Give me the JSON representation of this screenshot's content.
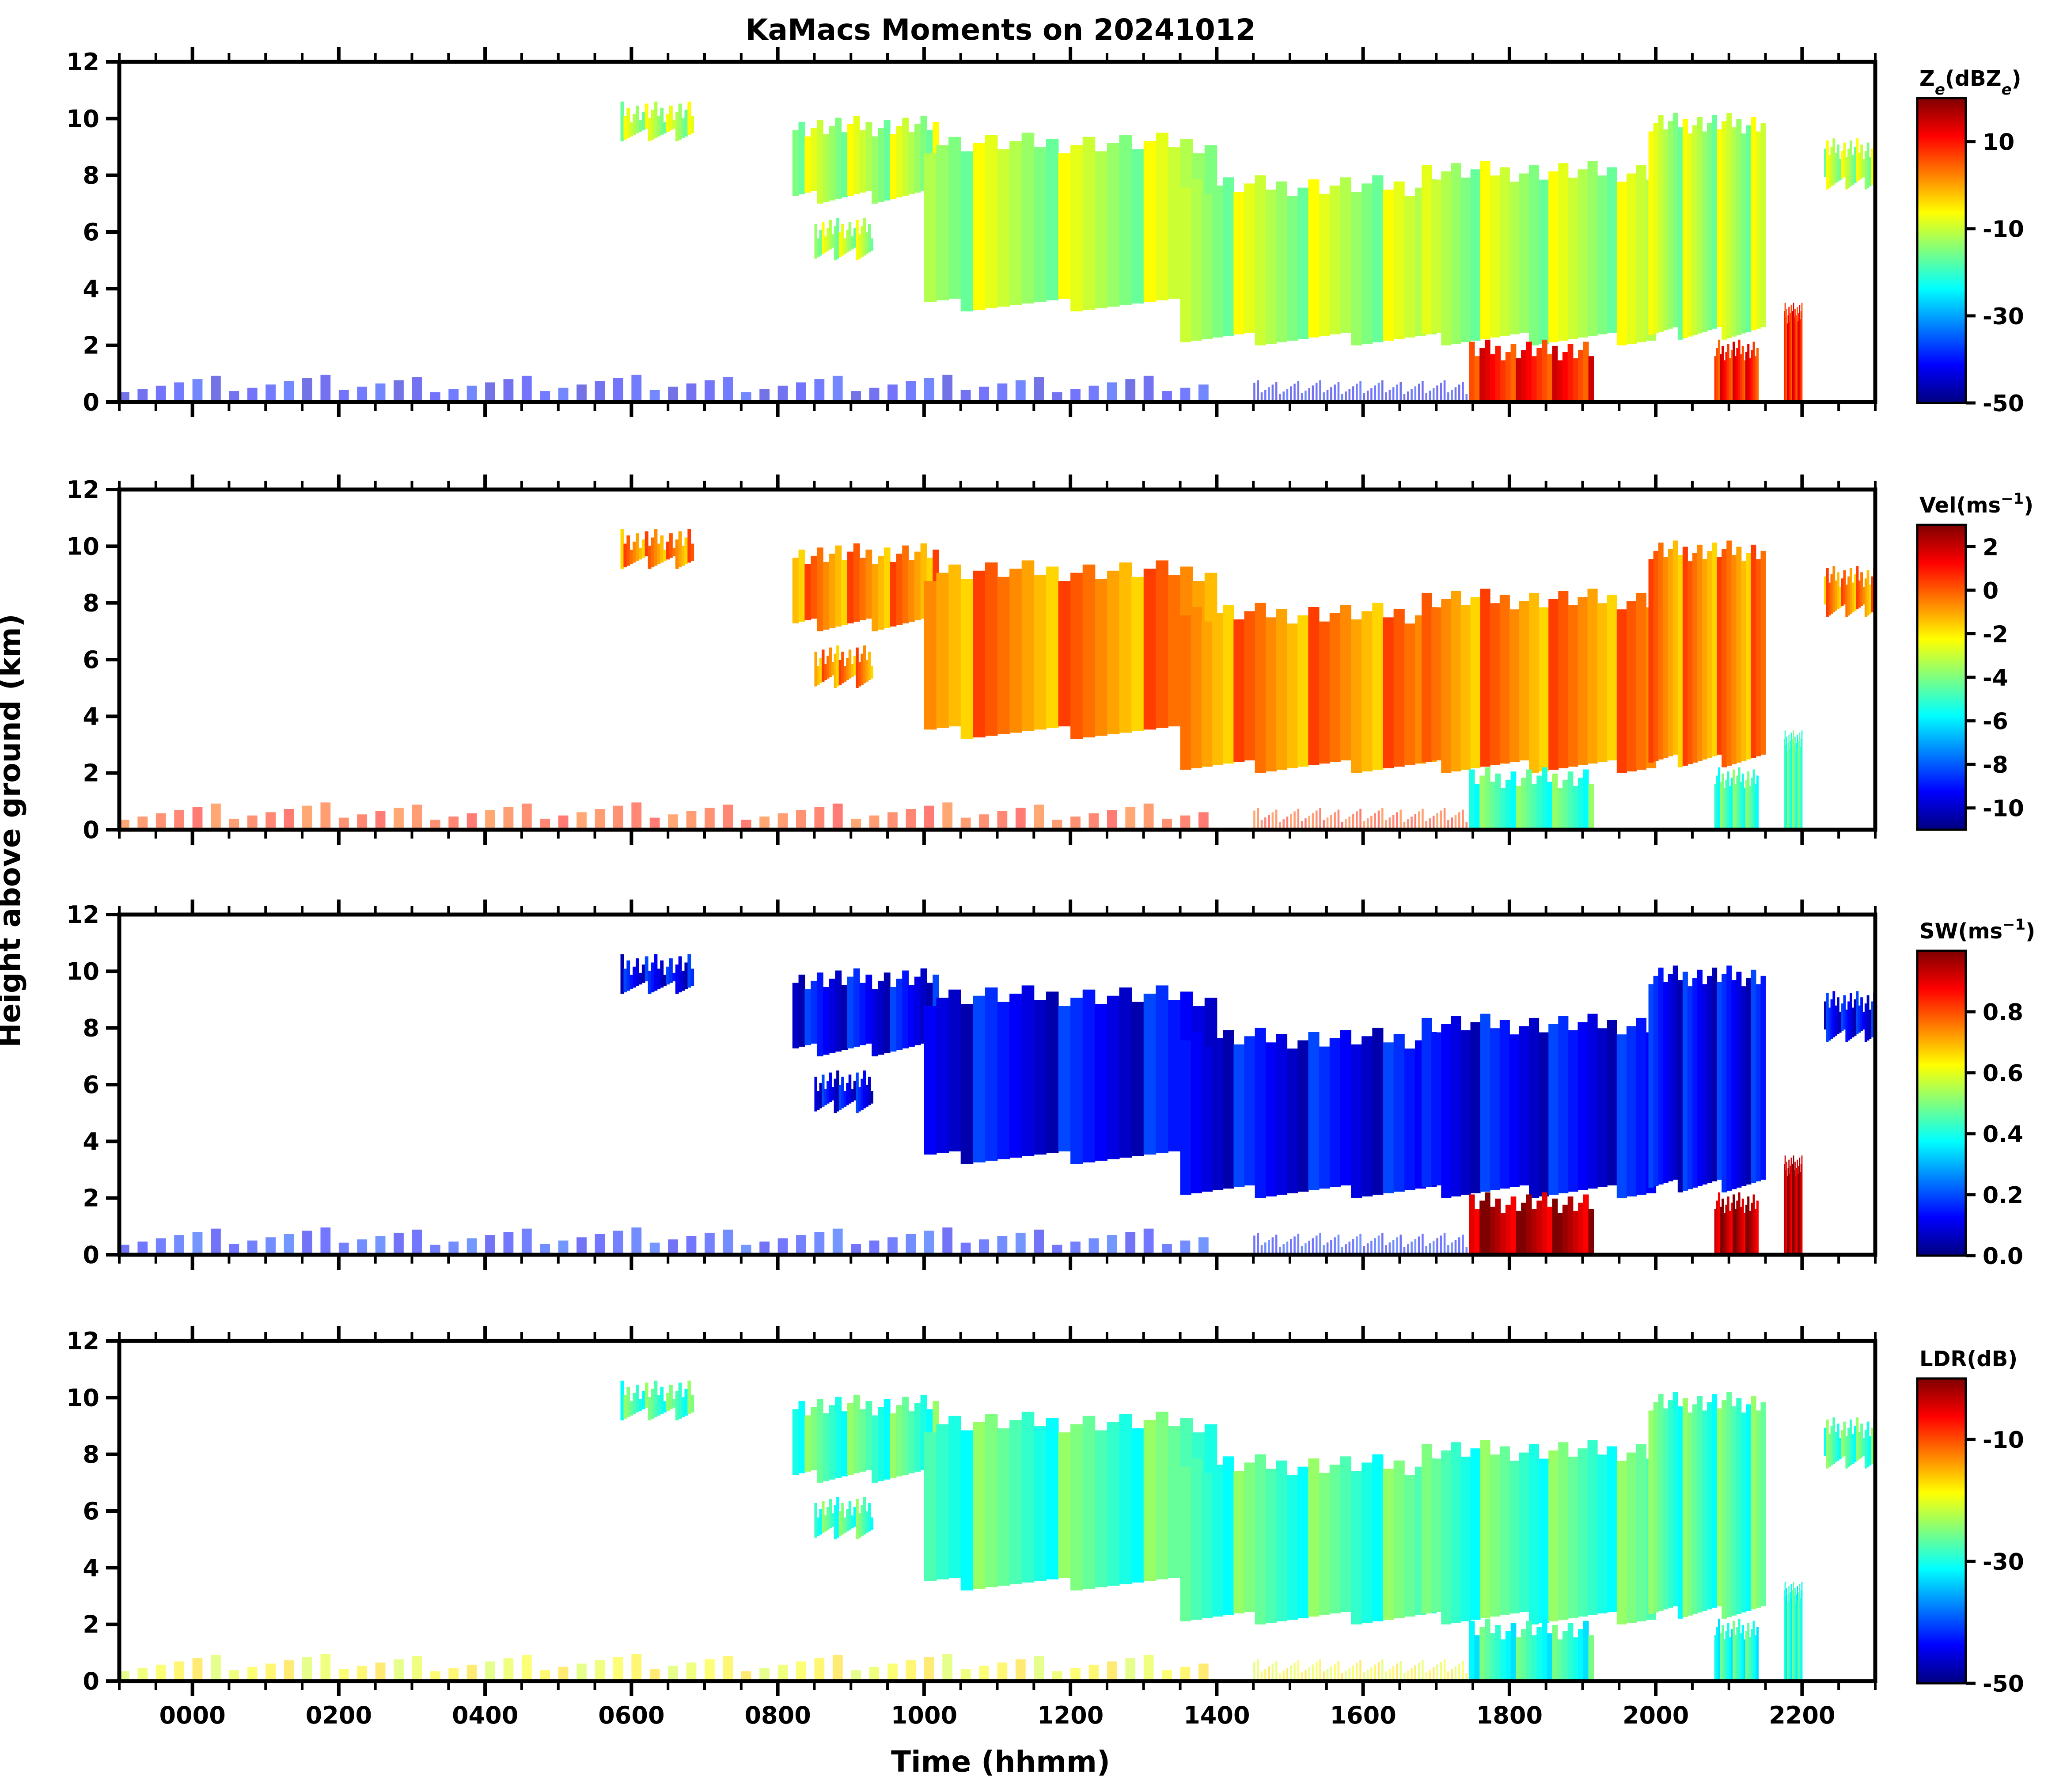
{
  "figure_title": "KaMacs Moments on 20241012",
  "colors": {
    "colormap": [
      "#00007f",
      "#0000ff",
      "#007fff",
      "#00ffff",
      "#7fff7f",
      "#ffff00",
      "#ff7f00",
      "#ff0000",
      "#7f0000"
    ],
    "axes": "#000000",
    "background": "#ffffff"
  },
  "chart_data": {
    "type": "heatmap",
    "title": "KaMacs Moments on 20241012",
    "xlabel": "Time (hhmm)",
    "ylabel": "Height above ground (km)",
    "x_unit": "hours (UTC)",
    "xlim": [
      -1.0,
      23.0
    ],
    "ylim": [
      0,
      12
    ],
    "x_ticks": [
      0,
      2,
      4,
      6,
      8,
      10,
      12,
      14,
      16,
      18,
      20,
      22
    ],
    "x_ticklabels": [
      "0000",
      "0200",
      "0400",
      "0600",
      "0800",
      "1000",
      "1200",
      "1400",
      "1600",
      "1800",
      "2000",
      "2200"
    ],
    "y_ticks": [
      0,
      2,
      4,
      6,
      8,
      10,
      12
    ],
    "y_ticklabels": [
      "0",
      "2",
      "4",
      "6",
      "8",
      "10",
      "12"
    ],
    "panels": [
      {
        "name": "reflectivity",
        "colorbar_label_main": "Z",
        "colorbar_label_sub": "e",
        "colorbar_label_mid": "(dBZ",
        "colorbar_label_sub2": "e",
        "colorbar_label_end": ")",
        "vmin": -50,
        "vmax": 20,
        "cbar_ticks": [
          -50,
          -30,
          -10,
          10
        ],
        "cbar_ticklabels": [
          "-50",
          "-30",
          "-10",
          "10"
        ],
        "cloud_value": 0.55,
        "precip_value": 0.85,
        "clutter_value": 0.12
      },
      {
        "name": "velocity",
        "colorbar_label_main": "Vel(ms",
        "colorbar_label_sup": "−1",
        "colorbar_label_end": ")",
        "vmin": -11,
        "vmax": 3,
        "cbar_ticks": [
          -10,
          -8,
          -6,
          -4,
          -2,
          0,
          2
        ],
        "cbar_ticklabels": [
          "-10",
          "-8",
          "-6",
          "-4",
          "-2",
          "0",
          "2"
        ],
        "cloud_value": 0.74,
        "precip_value": 0.45,
        "clutter_value": 0.82
      },
      {
        "name": "spectrum_width",
        "colorbar_label_main": "SW(ms",
        "colorbar_label_sup": "−1",
        "colorbar_label_end": ")",
        "vmin": 0.0,
        "vmax": 1.0,
        "cbar_ticks": [
          0.0,
          0.2,
          0.4,
          0.6,
          0.8
        ],
        "cbar_ticklabels": [
          "0.0",
          "0.2",
          "0.4",
          "0.6",
          "0.8"
        ],
        "cloud_value": 0.12,
        "precip_value": 0.95,
        "clutter_value": 0.15
      },
      {
        "name": "ldr",
        "colorbar_label_main": "LDR(dB)",
        "vmin": -50,
        "vmax": 0,
        "cbar_ticks": [
          -50,
          -30,
          -10
        ],
        "cbar_ticklabels": [
          "-50",
          "-30",
          "-10"
        ],
        "cloud_value": 0.45,
        "precip_value": 0.42,
        "clutter_value": 0.62
      }
    ],
    "cloud_regions": [
      {
        "label": "upper cloud 0600",
        "t0": 5.85,
        "t1": 6.85,
        "zbot": 9.2,
        "ztop": 10.6,
        "type": "cloud"
      },
      {
        "label": "cloud 0820-1000",
        "t0": 8.2,
        "t1": 10.2,
        "zbot": 7.0,
        "ztop": 10.1,
        "type": "cloud"
      },
      {
        "label": "small cloud 0900",
        "t0": 8.5,
        "t1": 9.3,
        "zbot": 5.0,
        "ztop": 6.5,
        "type": "cloud"
      },
      {
        "label": "deep cloud 1000-1400",
        "t0": 10.0,
        "t1": 14.0,
        "zbot": 3.2,
        "ztop": 9.5,
        "type": "cloud"
      },
      {
        "label": "deep cloud 1400-1700",
        "t0": 13.5,
        "t1": 17.0,
        "zbot": 2.0,
        "ztop": 8.0,
        "type": "cloud"
      },
      {
        "label": "system 1700-2000",
        "t0": 16.8,
        "t1": 20.0,
        "zbot": 2.0,
        "ztop": 8.5,
        "type": "cloud"
      },
      {
        "label": "cloud 2000-2140",
        "t0": 19.9,
        "t1": 21.5,
        "zbot": 2.2,
        "ztop": 10.2,
        "type": "cloud"
      },
      {
        "label": "cloud 2240-2300",
        "t0": 22.3,
        "t1": 23.0,
        "zbot": 7.5,
        "ztop": 9.3,
        "type": "cloud"
      },
      {
        "label": "precipitation 1745-1915",
        "t0": 17.45,
        "t1": 19.15,
        "zbot": 0.0,
        "ztop": 2.2,
        "type": "precip"
      },
      {
        "label": "precipitation 2050-2140",
        "t0": 20.8,
        "t1": 21.4,
        "zbot": 0.0,
        "ztop": 2.2,
        "type": "precip"
      },
      {
        "label": "precipitation 2150",
        "t0": 21.75,
        "t1": 22.0,
        "zbot": 0.0,
        "ztop": 3.5,
        "type": "precip"
      }
    ],
    "clutter_regions": [
      {
        "label": "near-surface clutter",
        "t0": -1.0,
        "t1": 14.0,
        "zbot": 0.0,
        "ztop": 1.0,
        "type": "clutter"
      },
      {
        "label": "surface clutter 1500",
        "t0": 14.5,
        "t1": 17.5,
        "zbot": 0.0,
        "ztop": 0.8,
        "type": "clutter"
      }
    ]
  }
}
